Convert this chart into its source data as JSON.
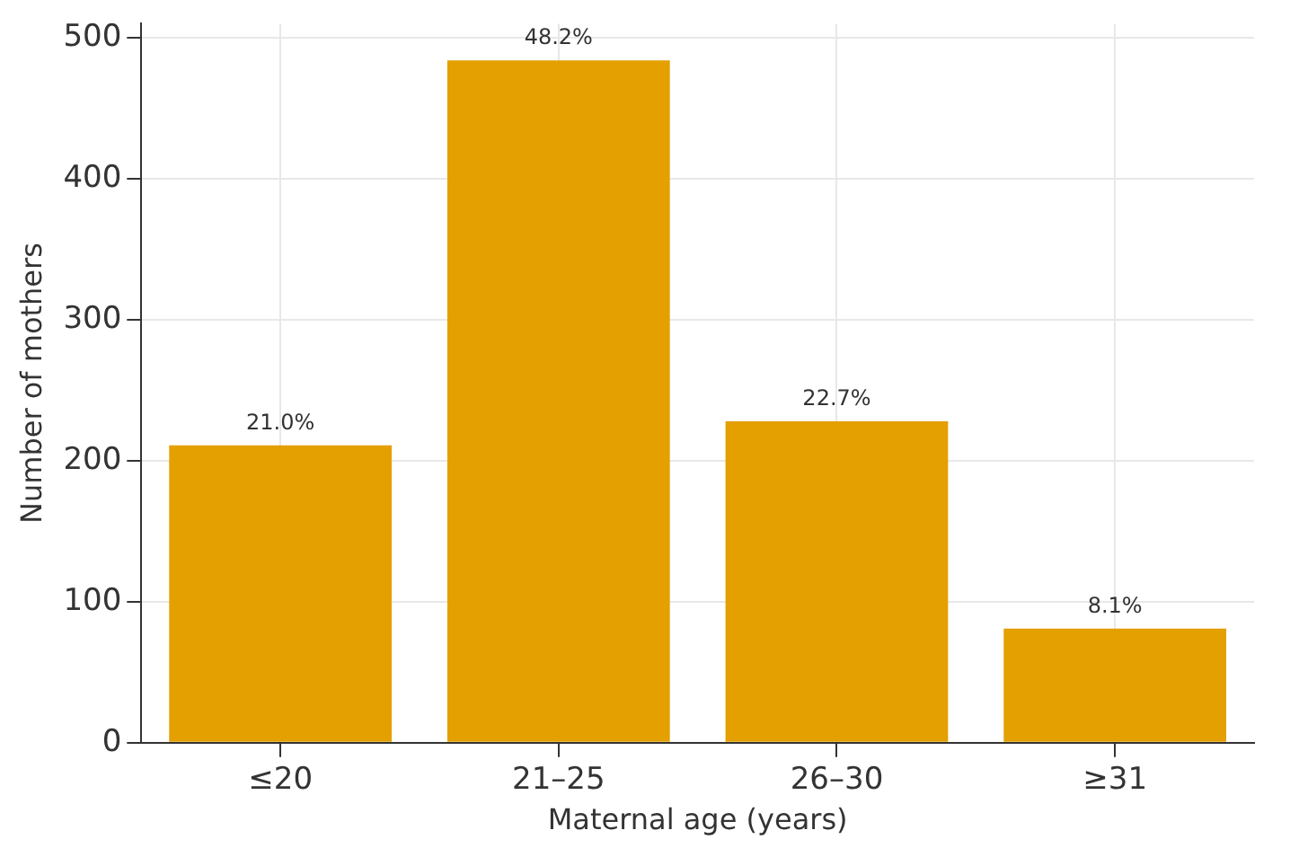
{
  "chart_data": {
    "type": "bar",
    "xlabel": "Maternal age (years)",
    "ylabel": "Number of mothers",
    "categories": [
      "≤20",
      "21–25",
      "26–30",
      "≥31"
    ],
    "values": [
      211,
      484,
      228,
      81
    ],
    "annotations": [
      {
        "text": "21.0%",
        "x": "≤20",
        "y": 211
      },
      {
        "text": "48.2%",
        "x": "21–25",
        "y": 484
      },
      {
        "text": "22.7%",
        "x": "26–30",
        "y": 228
      },
      {
        "text": "8.1%",
        "x": "≥31",
        "y": 81
      }
    ],
    "color": "#e49f00",
    "ylim": [
      0,
      510
    ],
    "yticks": [
      0,
      100,
      200,
      300,
      400,
      500
    ],
    "grid": true,
    "legend": false
  }
}
